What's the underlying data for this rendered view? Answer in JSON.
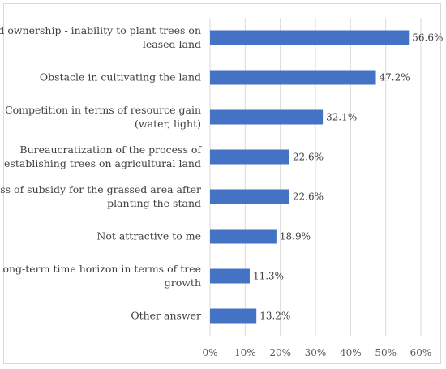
{
  "chart_data": {
    "type": "bar",
    "orientation": "horizontal",
    "title": "",
    "xlabel": "",
    "ylabel": "",
    "categories": [
      [
        "Land ownership - inability to plant trees on",
        "leased land"
      ],
      [
        "Obstacle in cultivating the land"
      ],
      [
        "Competition in terms of resource gain",
        "(water, light)"
      ],
      [
        "Bureaucratization of the process of",
        "establishing trees on agricultural land"
      ],
      [
        "Loss of subsidy for the grassed area after",
        "planting the stand"
      ],
      [
        "Not attractive to me"
      ],
      [
        "Long-term time horizon in terms of tree",
        "growth"
      ],
      [
        "Other answer"
      ]
    ],
    "values": [
      56.6,
      47.2,
      32.1,
      22.6,
      22.6,
      18.9,
      11.3,
      13.2
    ],
    "data_labels": [
      "56.6%",
      "47.2%",
      "32.1%",
      "22.6%",
      "22.6%",
      "18.9%",
      "11.3%",
      "13.2%"
    ],
    "xlim": [
      0,
      60
    ],
    "xticks": [
      0,
      10,
      20,
      30,
      40,
      50,
      60
    ],
    "xtick_labels": [
      "0%",
      "10%",
      "20%",
      "30%",
      "40%",
      "50%",
      "60%"
    ],
    "grid": "vertical",
    "legend": "none",
    "bar_color": "#4472C4",
    "grid_color": "#d9d9d9"
  }
}
